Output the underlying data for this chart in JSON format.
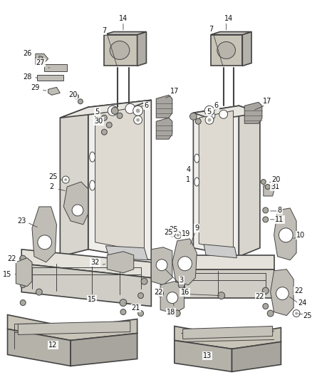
{
  "background_color": "#ffffff",
  "line_color": "#444444",
  "label_color": "#111111",
  "figsize": [
    4.39,
    5.33
  ],
  "dpi": 100,
  "lw_main": 1.2,
  "lw_thin": 0.7,
  "lw_thick": 1.5,
  "seat_fill": "#f0eeea",
  "seat_side_fill": "#d8d5ce",
  "frame_fill": "#e5e2db",
  "cushion_fill": "#c8c4b8",
  "bracket_fill": "#c0bdb6",
  "hardware_fill": "#aaa8a0"
}
